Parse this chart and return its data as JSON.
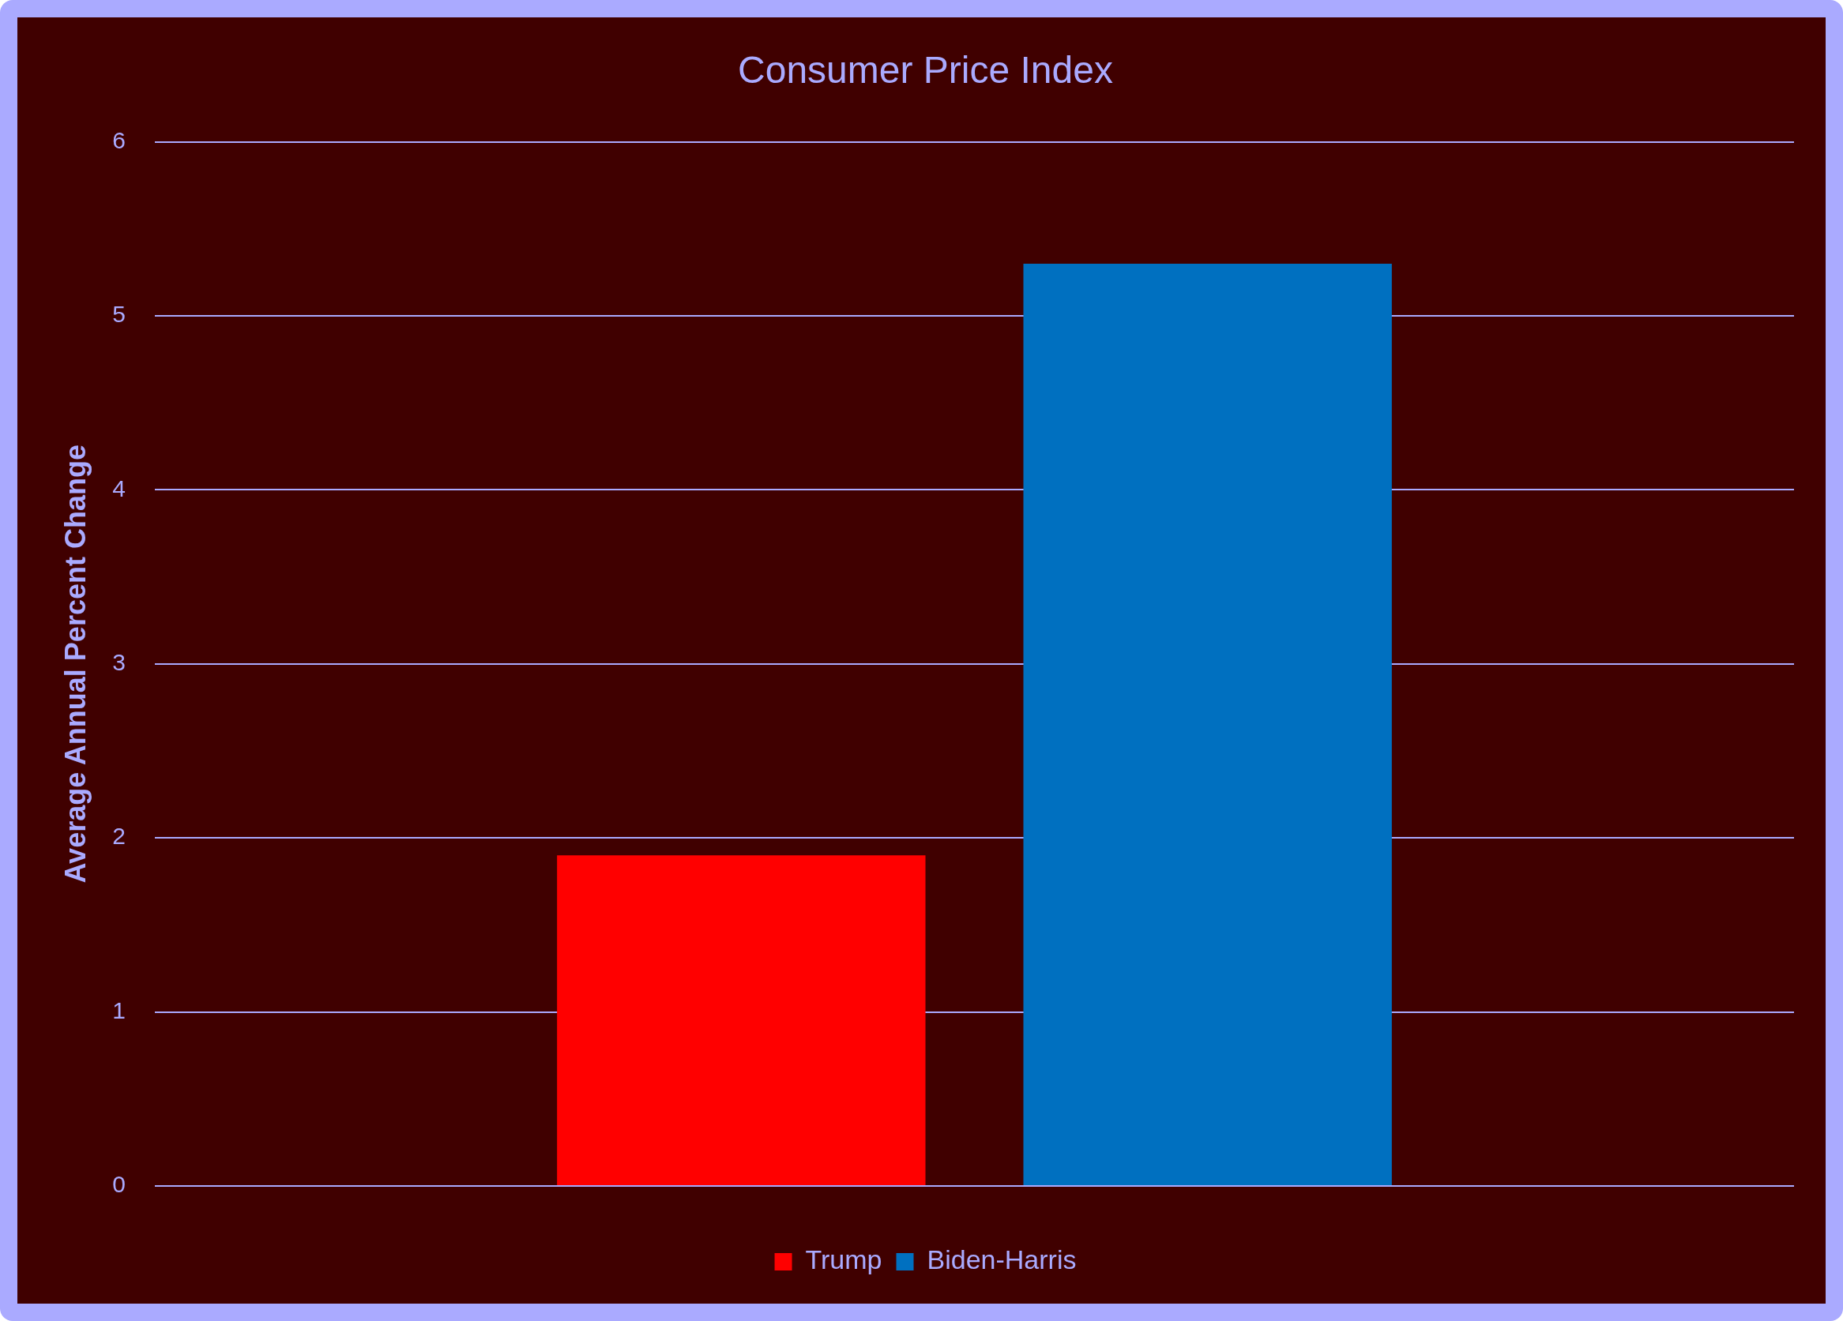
{
  "chart_data": {
    "type": "bar",
    "title": "Consumer Price Index",
    "ylabel": "Average Annual Percent Change",
    "categories": [
      null
    ],
    "series": [
      {
        "name": "Trump",
        "color": "#ff0000",
        "values": [
          1.9
        ]
      },
      {
        "name": "Biden-Harris",
        "color": "#0070c0",
        "values": [
          5.3
        ]
      }
    ],
    "ylim": [
      0,
      6
    ],
    "yticks": [
      0,
      1,
      2,
      3,
      4,
      5,
      6
    ],
    "grid": "y",
    "legend": "bottom"
  }
}
